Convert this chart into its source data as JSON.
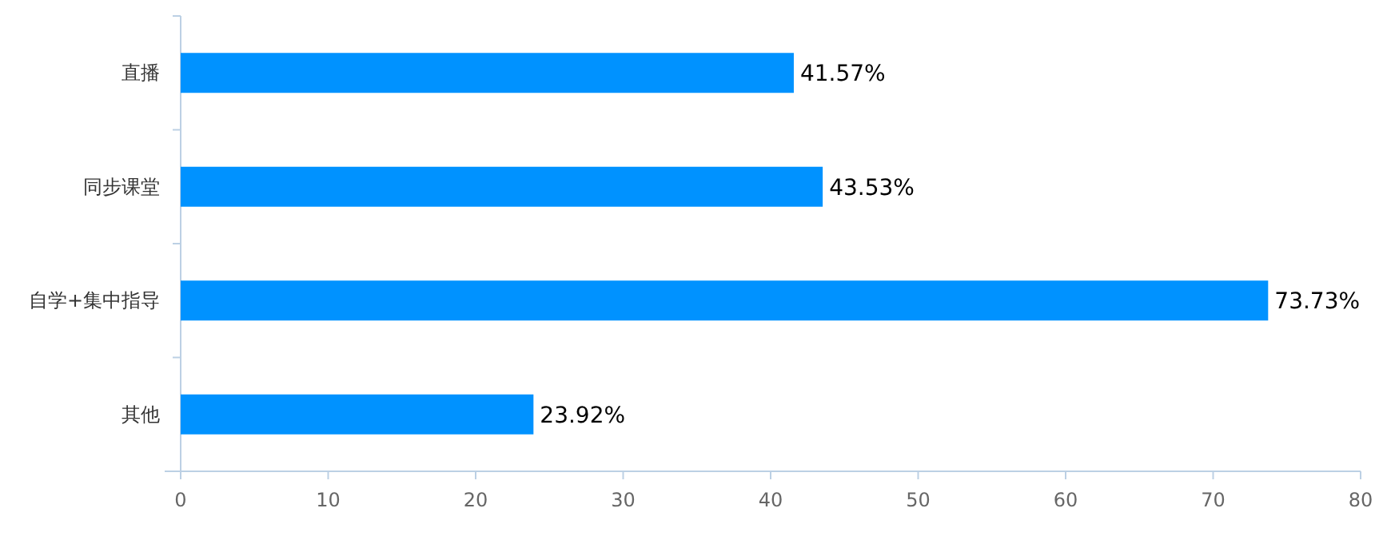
{
  "chart_data": {
    "type": "bar",
    "orientation": "horizontal",
    "categories": [
      "直播",
      "同步课堂",
      "自学+集中指导",
      "其他"
    ],
    "values": [
      41.57,
      43.53,
      73.73,
      23.92
    ],
    "value_labels": [
      "41.57%",
      "43.53%",
      "73.73%",
      "23.92%"
    ],
    "color": "#0092ff",
    "xlim": [
      0,
      80
    ],
    "xticks": [
      0,
      10,
      20,
      30,
      40,
      50,
      60,
      70,
      80
    ],
    "grid": false
  }
}
